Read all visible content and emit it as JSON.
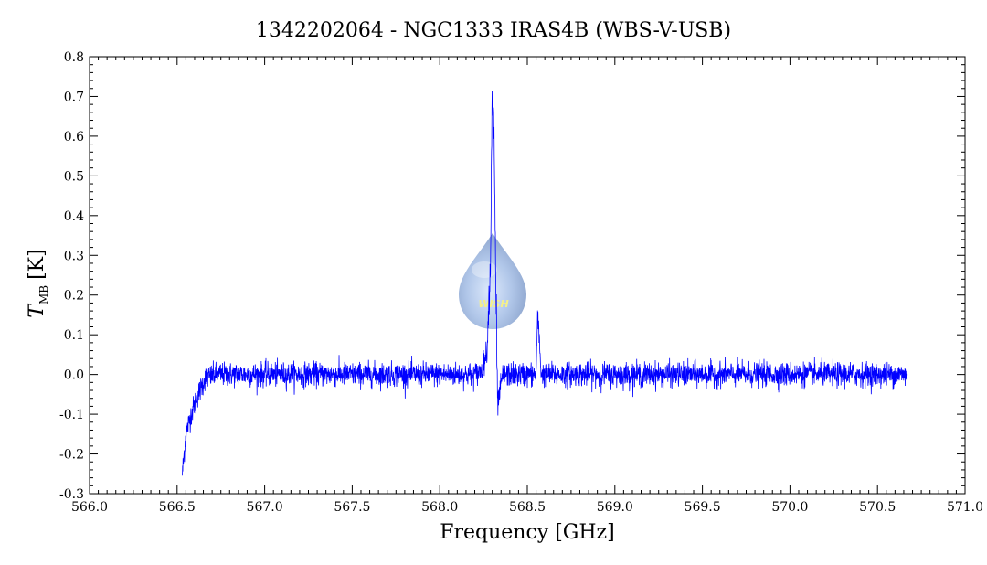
{
  "chart_data": {
    "type": "line",
    "title": "1342202064 - NGC1333 IRAS4B (WBS-V-USB)",
    "xlabel": "Frequency [GHz]",
    "ylabel": {
      "symbol": "T",
      "subscript": "MB",
      "unit": "[K]"
    },
    "xlim": [
      566.0,
      571.0
    ],
    "ylim": [
      -0.3,
      0.8
    ],
    "x_ticks": [
      "566.0",
      "566.5",
      "567.0",
      "567.5",
      "568.0",
      "568.5",
      "569.0",
      "569.5",
      "570.0",
      "570.5",
      "571.0"
    ],
    "y_ticks": [
      "-0.3",
      "-0.2",
      "-0.1",
      "0.0",
      "0.1",
      "0.2",
      "0.3",
      "0.4",
      "0.5",
      "0.6",
      "0.7",
      "0.8"
    ],
    "grid": false,
    "series": [
      {
        "color": "#0000ff",
        "x_range": [
          566.53,
          570.67
        ],
        "noise_rms": 0.015,
        "outline": [
          [
            566.53,
            -0.25
          ],
          [
            566.55,
            -0.15
          ],
          [
            566.58,
            -0.1
          ],
          [
            566.62,
            -0.05
          ],
          [
            566.66,
            -0.01
          ],
          [
            566.72,
            0.0
          ],
          [
            568.2,
            0.0
          ],
          [
            568.24,
            0.01
          ],
          [
            568.27,
            0.06
          ],
          [
            568.29,
            0.3
          ],
          [
            568.3,
            0.72
          ],
          [
            568.31,
            0.6
          ],
          [
            568.32,
            0.25
          ],
          [
            568.33,
            -0.08
          ],
          [
            568.36,
            0.0
          ],
          [
            568.55,
            0.0
          ],
          [
            568.56,
            0.15
          ],
          [
            568.58,
            0.0
          ],
          [
            570.67,
            0.0
          ]
        ]
      }
    ]
  },
  "watermark": {
    "text": "WISH",
    "color": "#a8c0e8"
  }
}
